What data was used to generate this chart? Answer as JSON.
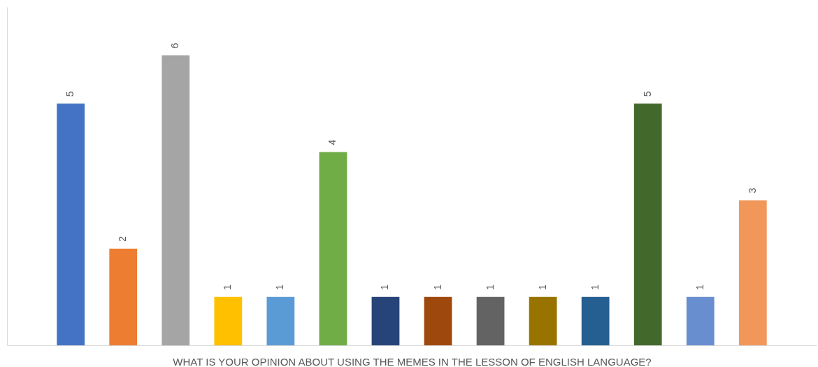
{
  "chart_data": {
    "type": "bar",
    "xlabel": "WHAT IS YOUR OPINION ABOUT USING THE MEMES IN THE LESSON OF ENGLISH LANGUAGE?",
    "categories": [
      null,
      null,
      null,
      null,
      null,
      null,
      null,
      null,
      null,
      null,
      null,
      null,
      null,
      null
    ],
    "values": [
      5,
      2,
      6,
      1,
      1,
      4,
      1,
      1,
      1,
      1,
      1,
      5,
      1,
      3
    ],
    "colors": [
      "#4472c4",
      "#ed7d31",
      "#a5a5a5",
      "#ffc000",
      "#5b9bd5",
      "#70ad47",
      "#264478",
      "#9e480e",
      "#636363",
      "#997300",
      "#255e91",
      "#43682b",
      "#698ed0",
      "#f1975a"
    ],
    "ylim": [
      0,
      7
    ],
    "data_labels": true,
    "grid": false
  }
}
